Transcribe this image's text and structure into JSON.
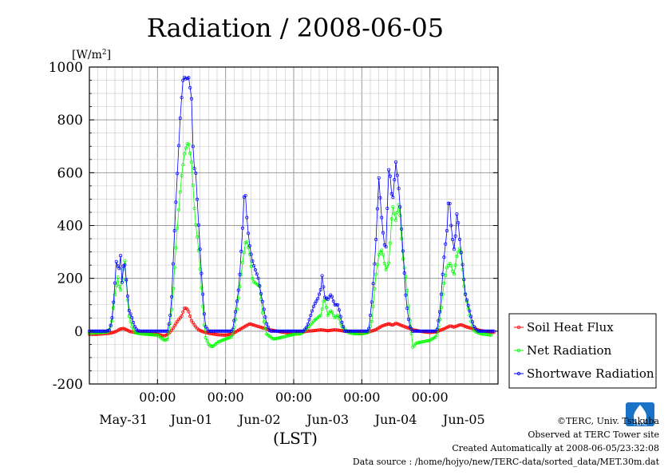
{
  "chart_data": {
    "type": "line",
    "title": "Radiation / 2008-06-05",
    "ylabel": "[W/m²]",
    "ylabel_base": "[W/m",
    "ylabel_sup": "2",
    "ylabel_end": "]",
    "xlabel": "(LST)",
    "ylim": [
      -200,
      1000
    ],
    "yticks": [
      1000,
      800,
      600,
      400,
      200,
      0,
      -200
    ],
    "xlim_days": [
      0,
      6
    ],
    "x_time_ticks": [
      "00:00",
      "00:00",
      "00:00",
      "00:00",
      "00:00"
    ],
    "x_date_labels": [
      "May-31",
      "Jun-01",
      "Jun-02",
      "Jun-03",
      "Jun-04",
      "Jun-05"
    ],
    "grid": true,
    "legend_position": "lower-right outside",
    "series": [
      {
        "name": "Soil Heat Flux",
        "color": "#ff0000",
        "points": [
          [
            0.0,
            -12
          ],
          [
            0.1,
            -12
          ],
          [
            0.2,
            -10
          ],
          [
            0.3,
            -8
          ],
          [
            0.35,
            -5
          ],
          [
            0.4,
            0
          ],
          [
            0.45,
            8
          ],
          [
            0.5,
            10
          ],
          [
            0.55,
            5
          ],
          [
            0.6,
            -2
          ],
          [
            0.7,
            -5
          ],
          [
            0.8,
            -7
          ],
          [
            0.9,
            -10
          ],
          [
            1.0,
            -12
          ],
          [
            1.05,
            -15
          ],
          [
            1.1,
            -18
          ],
          [
            1.15,
            -12
          ],
          [
            1.2,
            0
          ],
          [
            1.25,
            20
          ],
          [
            1.3,
            40
          ],
          [
            1.35,
            55
          ],
          [
            1.4,
            90
          ],
          [
            1.45,
            80
          ],
          [
            1.5,
            40
          ],
          [
            1.55,
            20
          ],
          [
            1.6,
            5
          ],
          [
            1.7,
            -5
          ],
          [
            1.8,
            -10
          ],
          [
            1.9,
            -14
          ],
          [
            2.0,
            -15
          ],
          [
            2.1,
            -10
          ],
          [
            2.2,
            5
          ],
          [
            2.3,
            20
          ],
          [
            2.35,
            28
          ],
          [
            2.45,
            20
          ],
          [
            2.55,
            12
          ],
          [
            2.65,
            5
          ],
          [
            2.8,
            -2
          ],
          [
            2.9,
            -6
          ],
          [
            3.0,
            -8
          ],
          [
            3.1,
            -5
          ],
          [
            3.2,
            0
          ],
          [
            3.3,
            2
          ],
          [
            3.4,
            5
          ],
          [
            3.5,
            2
          ],
          [
            3.6,
            5
          ],
          [
            3.7,
            2
          ],
          [
            3.8,
            -2
          ],
          [
            3.9,
            -5
          ],
          [
            4.0,
            -7
          ],
          [
            4.1,
            -3
          ],
          [
            4.2,
            5
          ],
          [
            4.3,
            20
          ],
          [
            4.4,
            28
          ],
          [
            4.45,
            22
          ],
          [
            4.5,
            30
          ],
          [
            4.55,
            25
          ],
          [
            4.65,
            15
          ],
          [
            4.75,
            5
          ],
          [
            4.9,
            -2
          ],
          [
            5.0,
            -5
          ],
          [
            5.1,
            -2
          ],
          [
            5.2,
            8
          ],
          [
            5.3,
            20
          ],
          [
            5.35,
            15
          ],
          [
            5.45,
            25
          ],
          [
            5.55,
            15
          ],
          [
            5.65,
            8
          ],
          [
            5.75,
            2
          ],
          [
            5.85,
            -2
          ],
          [
            5.95,
            -5
          ]
        ]
      },
      {
        "name": "Net Radiation",
        "color": "#00ff00",
        "points": [
          [
            0.0,
            -8
          ],
          [
            0.1,
            -6
          ],
          [
            0.2,
            -5
          ],
          [
            0.28,
            -2
          ],
          [
            0.33,
            30
          ],
          [
            0.38,
            150
          ],
          [
            0.42,
            210
          ],
          [
            0.45,
            140
          ],
          [
            0.48,
            200
          ],
          [
            0.52,
            270
          ],
          [
            0.55,
            160
          ],
          [
            0.58,
            60
          ],
          [
            0.62,
            20
          ],
          [
            0.66,
            -5
          ],
          [
            0.75,
            -10
          ],
          [
            0.85,
            -12
          ],
          [
            1.0,
            -15
          ],
          [
            1.1,
            -35
          ],
          [
            1.15,
            -30
          ],
          [
            1.2,
            50
          ],
          [
            1.25,
            240
          ],
          [
            1.3,
            420
          ],
          [
            1.35,
            580
          ],
          [
            1.4,
            680
          ],
          [
            1.45,
            720
          ],
          [
            1.5,
            640
          ],
          [
            1.55,
            430
          ],
          [
            1.6,
            320
          ],
          [
            1.65,
            150
          ],
          [
            1.7,
            -20
          ],
          [
            1.75,
            -50
          ],
          [
            1.8,
            -60
          ],
          [
            1.9,
            -40
          ],
          [
            2.0,
            -30
          ],
          [
            2.1,
            -20
          ],
          [
            2.15,
            50
          ],
          [
            2.2,
            150
          ],
          [
            2.25,
            260
          ],
          [
            2.3,
            350
          ],
          [
            2.35,
            300
          ],
          [
            2.4,
            190
          ],
          [
            2.45,
            180
          ],
          [
            2.5,
            170
          ],
          [
            2.55,
            50
          ],
          [
            2.6,
            -10
          ],
          [
            2.7,
            -30
          ],
          [
            2.8,
            -25
          ],
          [
            3.0,
            -12
          ],
          [
            3.1,
            -10
          ],
          [
            3.2,
            10
          ],
          [
            3.3,
            40
          ],
          [
            3.4,
            60
          ],
          [
            3.45,
            130
          ],
          [
            3.5,
            60
          ],
          [
            3.55,
            80
          ],
          [
            3.6,
            50
          ],
          [
            3.65,
            60
          ],
          [
            3.7,
            20
          ],
          [
            3.8,
            -5
          ],
          [
            3.9,
            -10
          ],
          [
            4.0,
            -10
          ],
          [
            4.1,
            -5
          ],
          [
            4.15,
            40
          ],
          [
            4.2,
            200
          ],
          [
            4.25,
            290
          ],
          [
            4.3,
            310
          ],
          [
            4.35,
            230
          ],
          [
            4.4,
            260
          ],
          [
            4.45,
            480
          ],
          [
            4.5,
            420
          ],
          [
            4.55,
            490
          ],
          [
            4.6,
            280
          ],
          [
            4.65,
            200
          ],
          [
            4.7,
            60
          ],
          [
            4.75,
            -60
          ],
          [
            4.8,
            -45
          ],
          [
            4.9,
            -40
          ],
          [
            5.0,
            -35
          ],
          [
            5.1,
            -20
          ],
          [
            5.15,
            50
          ],
          [
            5.2,
            170
          ],
          [
            5.25,
            240
          ],
          [
            5.3,
            260
          ],
          [
            5.35,
            210
          ],
          [
            5.4,
            290
          ],
          [
            5.45,
            320
          ],
          [
            5.5,
            170
          ],
          [
            5.55,
            100
          ],
          [
            5.6,
            40
          ],
          [
            5.65,
            0
          ],
          [
            5.75,
            -10
          ],
          [
            5.9,
            -15
          ]
        ]
      },
      {
        "name": "Shortwave Radiation",
        "color": "#0000ff",
        "points": [
          [
            0.0,
            0
          ],
          [
            0.25,
            0
          ],
          [
            0.3,
            5
          ],
          [
            0.34,
            60
          ],
          [
            0.38,
            200
          ],
          [
            0.4,
            280
          ],
          [
            0.43,
            220
          ],
          [
            0.46,
            290
          ],
          [
            0.48,
            180
          ],
          [
            0.51,
            280
          ],
          [
            0.54,
            200
          ],
          [
            0.58,
            80
          ],
          [
            0.62,
            55
          ],
          [
            0.66,
            20
          ],
          [
            0.7,
            2
          ],
          [
            0.75,
            0
          ],
          [
            1.0,
            0
          ],
          [
            1.15,
            0
          ],
          [
            1.2,
            80
          ],
          [
            1.25,
            380
          ],
          [
            1.3,
            640
          ],
          [
            1.34,
            840
          ],
          [
            1.38,
            965
          ],
          [
            1.42,
            955
          ],
          [
            1.46,
            960
          ],
          [
            1.5,
            880
          ],
          [
            1.53,
            620
          ],
          [
            1.56,
            610
          ],
          [
            1.6,
            420
          ],
          [
            1.65,
            200
          ],
          [
            1.7,
            20
          ],
          [
            1.75,
            0
          ],
          [
            2.0,
            0
          ],
          [
            2.1,
            0
          ],
          [
            2.15,
            80
          ],
          [
            2.2,
            180
          ],
          [
            2.25,
            390
          ],
          [
            2.28,
            560
          ],
          [
            2.32,
            400
          ],
          [
            2.36,
            310
          ],
          [
            2.4,
            260
          ],
          [
            2.44,
            230
          ],
          [
            2.48,
            200
          ],
          [
            2.55,
            100
          ],
          [
            2.6,
            30
          ],
          [
            2.65,
            0
          ],
          [
            3.0,
            0
          ],
          [
            3.15,
            0
          ],
          [
            3.2,
            20
          ],
          [
            3.3,
            100
          ],
          [
            3.35,
            120
          ],
          [
            3.4,
            160
          ],
          [
            3.42,
            220
          ],
          [
            3.45,
            130
          ],
          [
            3.5,
            120
          ],
          [
            3.55,
            140
          ],
          [
            3.6,
            100
          ],
          [
            3.65,
            100
          ],
          [
            3.7,
            40
          ],
          [
            3.75,
            0
          ],
          [
            4.0,
            0
          ],
          [
            4.1,
            0
          ],
          [
            4.15,
            120
          ],
          [
            4.2,
            300
          ],
          [
            4.25,
            580
          ],
          [
            4.3,
            400
          ],
          [
            4.35,
            290
          ],
          [
            4.4,
            640
          ],
          [
            4.45,
            480
          ],
          [
            4.5,
            640
          ],
          [
            4.55,
            520
          ],
          [
            4.6,
            320
          ],
          [
            4.65,
            120
          ],
          [
            4.7,
            20
          ],
          [
            4.75,
            0
          ],
          [
            5.0,
            0
          ],
          [
            5.1,
            0
          ],
          [
            5.15,
            80
          ],
          [
            5.2,
            260
          ],
          [
            5.25,
            380
          ],
          [
            5.28,
            530
          ],
          [
            5.32,
            370
          ],
          [
            5.36,
            300
          ],
          [
            5.4,
            460
          ],
          [
            5.44,
            340
          ],
          [
            5.48,
            250
          ],
          [
            5.52,
            140
          ],
          [
            5.58,
            80
          ],
          [
            5.64,
            20
          ],
          [
            5.7,
            0
          ],
          [
            5.95,
            0
          ]
        ]
      }
    ]
  },
  "footer": {
    "copyright": "©TERC, Univ. Tsukuba",
    "observed": "Observed at TERC Tower site",
    "created": "Created Automatically at 2008-06-05/23:32:08",
    "source": "Data source : /home/hojyo/new/TERC-data/sorted_data/MET.30m.dat"
  },
  "logo": {
    "text": "TERC",
    "color": "#1a73c9"
  }
}
